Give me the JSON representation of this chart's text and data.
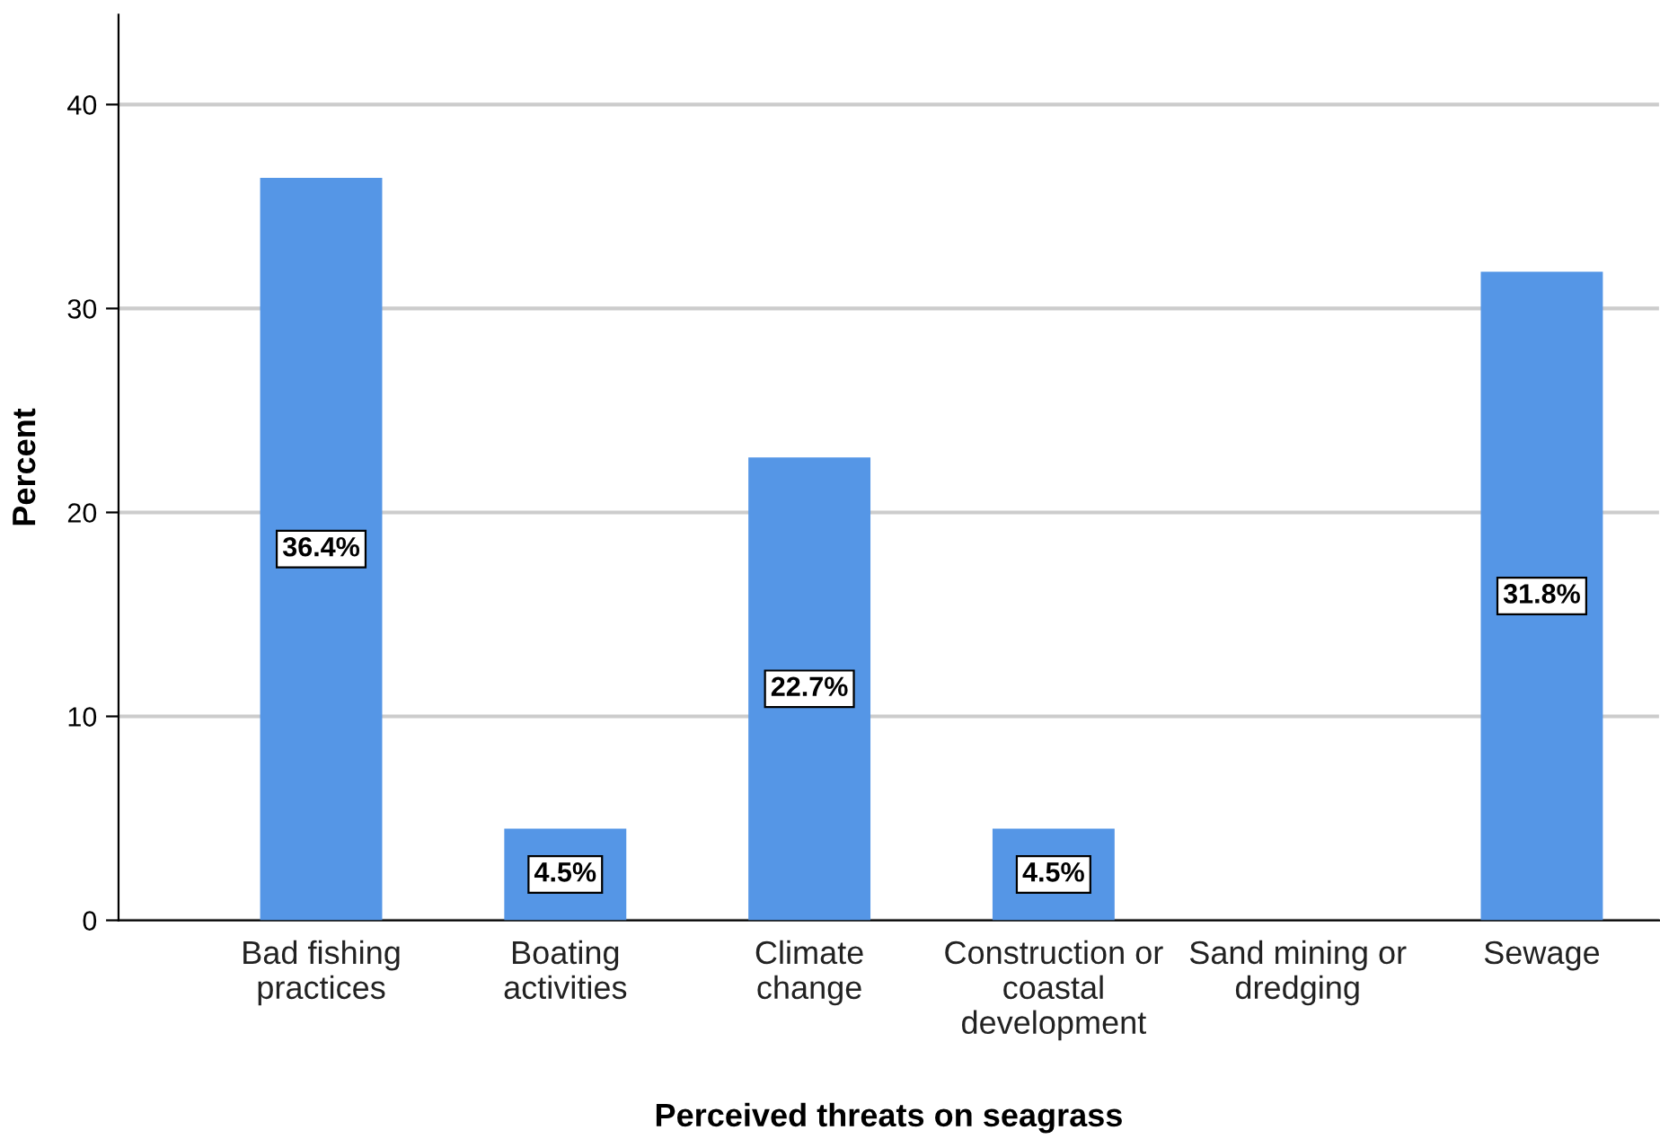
{
  "chart_data": {
    "type": "bar",
    "xlabel": "Perceived threats on seagrass",
    "ylabel": "Percent",
    "categories": [
      "Bad fishing\npractices",
      "Boating\nactivities",
      "Climate\nchange",
      "Construction or\ncoastal\ndevelopment",
      "Sand mining or\ndredging",
      "Sewage"
    ],
    "values": [
      36.4,
      4.5,
      22.7,
      4.5,
      0,
      31.8
    ],
    "value_labels": [
      "36.4%",
      "4.5%",
      "22.7%",
      "4.5%",
      null,
      "31.8%"
    ],
    "color": "#5596e6",
    "ylim": [
      0,
      44.4
    ],
    "yticks": [
      0,
      10,
      20,
      30,
      40
    ],
    "grid": "y",
    "legend": false
  }
}
